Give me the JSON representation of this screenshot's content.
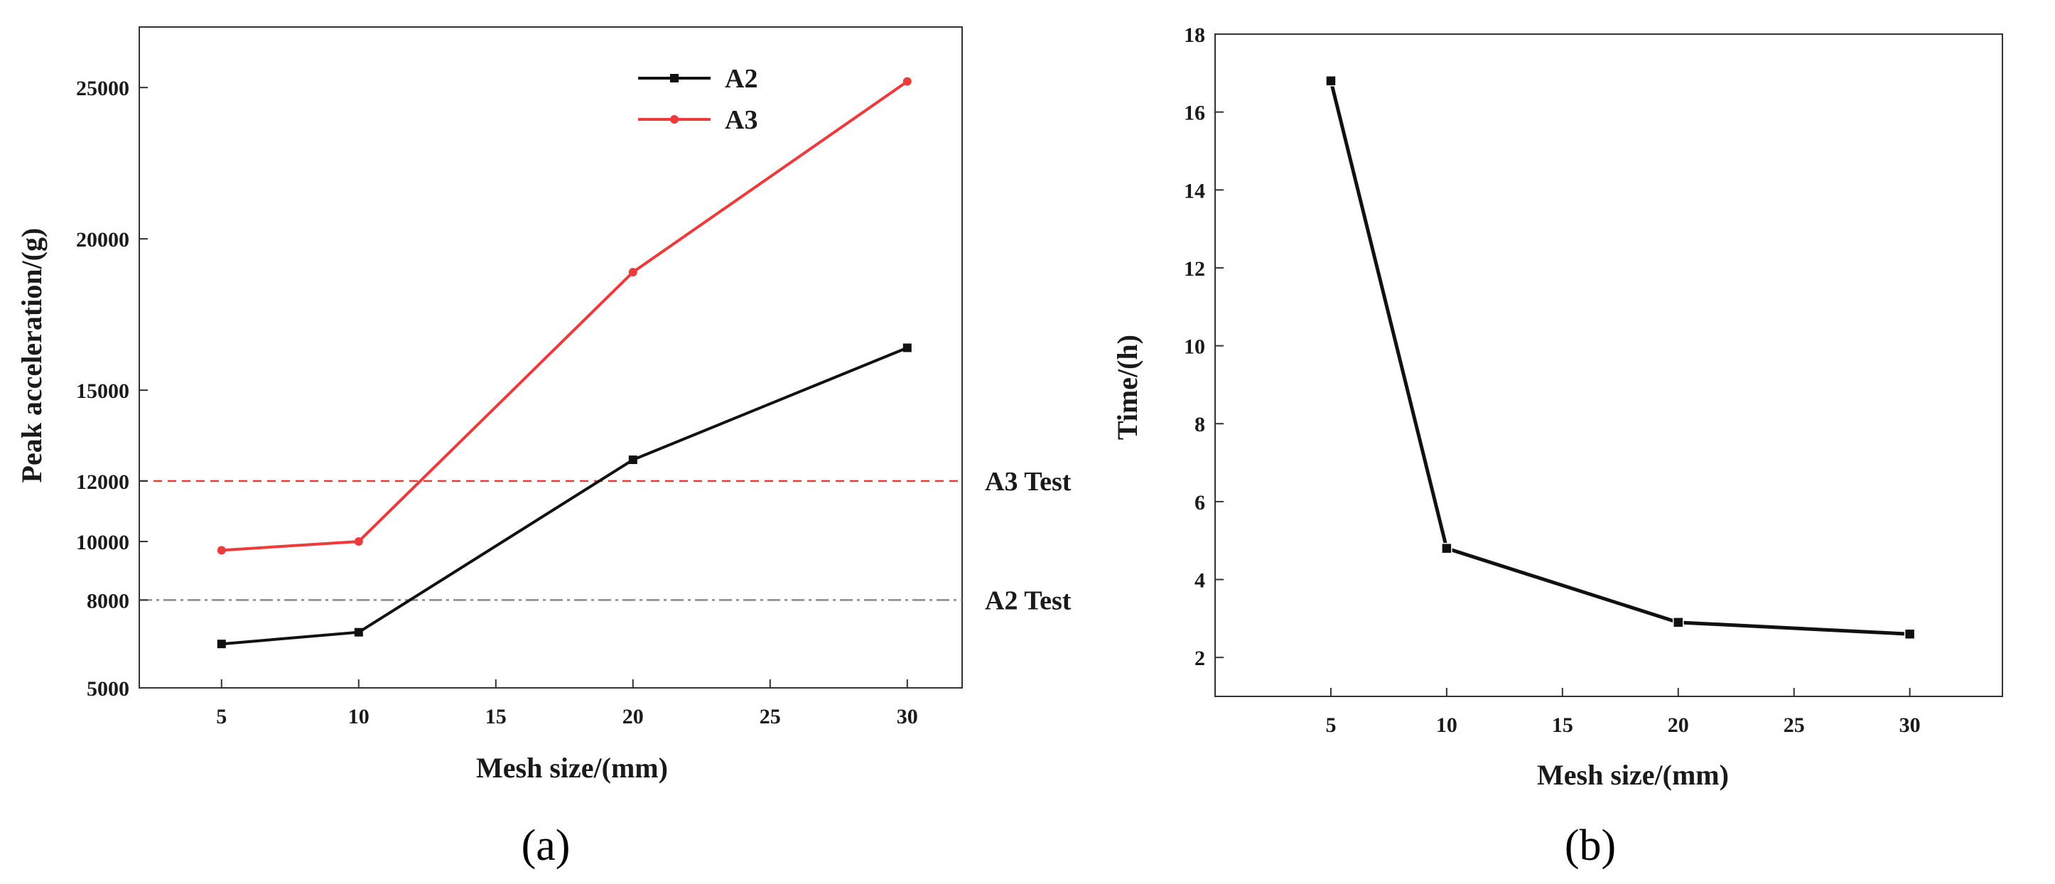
{
  "chart_data": [
    {
      "type": "line",
      "panel_label": "(a)",
      "xlabel": "Mesh size/(mm)",
      "ylabel": "Peak acceleration/(g)",
      "xlim": [
        2,
        32
      ],
      "ylim": [
        5000,
        27000
      ],
      "x_ticks": [
        5,
        10,
        15,
        20,
        25,
        30
      ],
      "y_ticks": [
        5000,
        8000,
        10000,
        12000,
        15000,
        20000,
        25000
      ],
      "y_tick_labels": [
        "5000",
        "8000",
        "10000",
        "12000",
        "15000",
        "20000",
        "25000"
      ],
      "x": [
        5,
        10,
        20,
        30
      ],
      "series": [
        {
          "name": "A2",
          "color": "#111111",
          "marker": "square",
          "values": [
            6500,
            6900,
            12700,
            16400
          ]
        },
        {
          "name": "A3",
          "color": "#ee3a3a",
          "marker": "circle",
          "values": [
            9700,
            10000,
            18900,
            25200
          ]
        }
      ],
      "reference_lines": [
        {
          "label": "A3 Test",
          "value": 12000,
          "color": "#ee3a3a",
          "style": "dashed"
        },
        {
          "label": "A2 Test",
          "value": 8000,
          "color": "#8a8a8a",
          "style": "dashdot"
        }
      ],
      "legend": {
        "position": "top-right"
      }
    },
    {
      "type": "line",
      "panel_label": "(b)",
      "xlabel": "Mesh size/(mm)",
      "ylabel": "Time/(h)",
      "xlim": [
        0,
        34
      ],
      "ylim": [
        1,
        18
      ],
      "x_ticks": [
        5,
        10,
        15,
        20,
        25,
        30
      ],
      "y_ticks": [
        2,
        4,
        6,
        8,
        10,
        12,
        14,
        16,
        18
      ],
      "y_tick_labels": [
        "2",
        "4",
        "6",
        "8",
        "10",
        "12",
        "14",
        "16",
        "18"
      ],
      "x": [
        5,
        10,
        20,
        30
      ],
      "series": [
        {
          "name": "Time",
          "color": "#111111",
          "marker": "square",
          "values": [
            16.8,
            4.8,
            2.9,
            2.6
          ]
        }
      ]
    }
  ]
}
